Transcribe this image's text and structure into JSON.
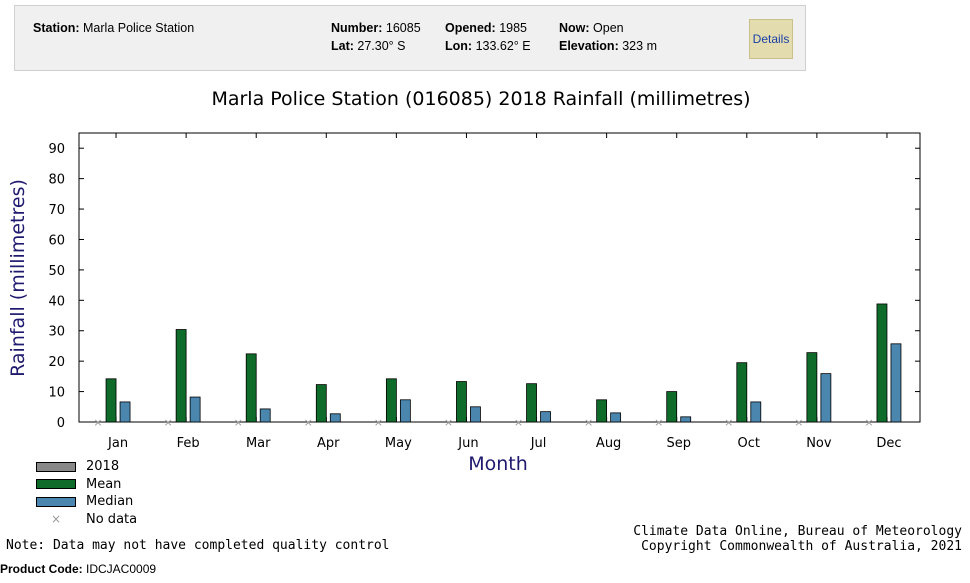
{
  "station": {
    "station_label": "Station:",
    "station_value": "Marla Police Station",
    "number_label": "Number:",
    "number_value": "16085",
    "opened_label": "Opened:",
    "opened_value": "1985",
    "now_label": "Now:",
    "now_value": "Open",
    "lat_label": "Lat:",
    "lat_value": "27.30° S",
    "lon_label": "Lon:",
    "lon_value": "133.62° E",
    "elevation_label": "Elevation:",
    "elevation_value": "323 m",
    "details_label": "Details"
  },
  "chart_data": {
    "type": "bar",
    "title": "Marla Police Station (016085) 2018 Rainfall (millimetres)",
    "xlabel": "Month",
    "ylabel": "Rainfall (millimetres)",
    "ylim": [
      0,
      95
    ],
    "yticks": [
      0,
      10,
      20,
      30,
      40,
      50,
      60,
      70,
      80,
      90
    ],
    "categories": [
      "Jan",
      "Feb",
      "Mar",
      "Apr",
      "May",
      "Jun",
      "Jul",
      "Aug",
      "Sep",
      "Oct",
      "Nov",
      "Dec"
    ],
    "series": [
      {
        "name": "2018",
        "color": "#888888",
        "values": [
          null,
          null,
          null,
          null,
          null,
          null,
          null,
          null,
          null,
          null,
          null,
          null
        ]
      },
      {
        "name": "Mean",
        "color": "#0f6b2a",
        "values": [
          14.2,
          30.4,
          22.4,
          12.3,
          14.2,
          13.3,
          12.6,
          7.3,
          10.0,
          19.5,
          22.8,
          38.8
        ]
      },
      {
        "name": "Median",
        "color": "#4a86ae",
        "values": [
          6.6,
          8.2,
          4.3,
          2.7,
          7.3,
          5.0,
          3.4,
          3.0,
          1.7,
          6.6,
          15.9,
          25.7
        ]
      }
    ],
    "no_data_label": "No data",
    "no_data_marker": "×",
    "legend_position": "bottom-left"
  },
  "footer": {
    "note": "Note: Data may not have completed quality control",
    "credit_line1": "Climate Data Online, Bureau of Meteorology",
    "credit_line2": "Copyright Commonwealth of Australia, 2021",
    "product_code_label": "Product Code:",
    "product_code_value": "IDCJAC0009"
  }
}
